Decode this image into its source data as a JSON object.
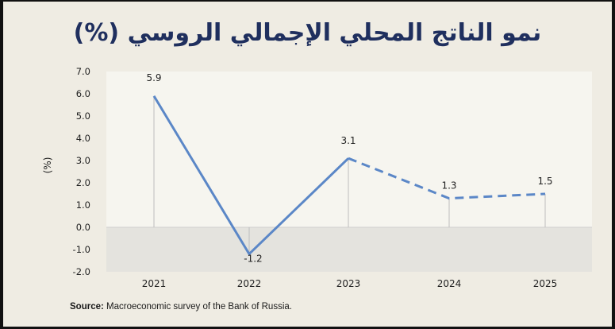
{
  "title": "نمو الناتج المحلي الإجمالي الروسي (%)",
  "source": {
    "label": "Source:",
    "text": " Macroeconomic survey of the Bank of Russia."
  },
  "colors": {
    "line": "#5b87c7",
    "title": "#1f2f5e",
    "plot_bg": "#f6f5ef",
    "negative_band": "#e4e3de",
    "axis_text": "#222222",
    "drop_line": "#bdbdbd"
  },
  "chart_data": {
    "type": "line",
    "categories": [
      "2021",
      "2022",
      "2023",
      "2024",
      "2025"
    ],
    "values": [
      5.9,
      -1.2,
      3.1,
      1.3,
      1.5
    ],
    "value_labels": [
      "5.9",
      "-1.2",
      "3.1",
      "1.3",
      "1.5"
    ],
    "solid_through_index": 2,
    "dashed_from_index": 2,
    "ylabel": "(%)",
    "xlabel": "",
    "ylim": [
      -2.0,
      7.0
    ],
    "yticks": [
      "7.0",
      "6.0",
      "5.0",
      "4.0",
      "3.0",
      "2.0",
      "1.0",
      "0.0",
      "-1.0",
      "-2.0"
    ],
    "ytick_values": [
      7,
      6,
      5,
      4,
      3,
      2,
      1,
      0,
      -1,
      -2
    ],
    "grid": false,
    "legend": "none"
  }
}
